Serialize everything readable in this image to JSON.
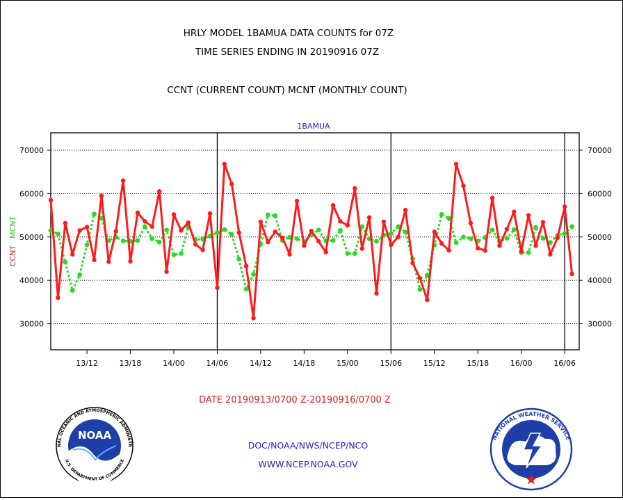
{
  "header": {
    "title_line1": "HRLY MODEL 1BAMUA DATA COUNTS for 07Z",
    "title_line2": "TIME SERIES ENDING IN 20190916 07Z",
    "subtitle": "CCNT (CURRENT COUNT) MCNT (MONTHLY COUNT)"
  },
  "footer": {
    "date_range": "DATE 20190913/0700 Z-20190916/0700 Z",
    "org": "DOC/NOAA/NWS/NCEP/NCO",
    "url": "WWW.NCEP.NOAA.GOV"
  },
  "logos": {
    "noaa_text": "NOAA",
    "noaa_ring": "NATIONAL OCEANIC AND ATMOSPHERIC ADMINISTRATION",
    "noaa_ring_bottom": "U.S. DEPARTMENT OF COMMERCE",
    "nws_ring": "NATIONAL WEATHER SERVICE"
  },
  "colors": {
    "ccnt": "#ff1a1a",
    "mcnt": "#22dd22",
    "title": "#000000",
    "footer_date": "#e02020",
    "footer_links": "#2222cc",
    "panel_label": "#2222cc"
  },
  "chart_data": {
    "type": "line",
    "panel_label": "1BAMUA",
    "xlabel": "DATE 20190913/0700 Z-20190916/0700 Z",
    "ylabel_left": "CCNT",
    "ylabel_left2": "MCNT",
    "ylim": [
      24000,
      74000
    ],
    "xlim": [
      0,
      73
    ],
    "yticks": [
      30000,
      40000,
      50000,
      60000,
      70000
    ],
    "ytick_labels": [
      "30000",
      "40000",
      "50000",
      "60000",
      "70000"
    ],
    "xticks": [
      5,
      11,
      17,
      23,
      29,
      35,
      41,
      47,
      53,
      59,
      65,
      71
    ],
    "xtick_labels": [
      "13/12",
      "13/18",
      "14/00",
      "14/06",
      "14/12",
      "14/18",
      "15/00",
      "15/06",
      "15/12",
      "15/18",
      "16/00",
      "16/06"
    ],
    "vlines": [
      23,
      47,
      71
    ],
    "grid": true,
    "x": [
      0,
      1,
      2,
      3,
      4,
      5,
      6,
      7,
      8,
      9,
      10,
      11,
      12,
      13,
      14,
      15,
      16,
      17,
      18,
      19,
      20,
      21,
      22,
      23,
      24,
      25,
      26,
      27,
      28,
      29,
      30,
      31,
      32,
      33,
      34,
      35,
      36,
      37,
      38,
      39,
      40,
      41,
      42,
      43,
      44,
      45,
      46,
      47,
      48,
      49,
      50,
      51,
      52,
      53,
      54,
      55,
      56,
      57,
      58,
      59,
      60,
      61,
      62,
      63,
      64,
      65,
      66,
      67,
      68,
      69,
      70,
      71,
      72
    ],
    "series": [
      {
        "name": "CCNT",
        "values": [
          58500,
          36000,
          53200,
          46000,
          51500,
          52300,
          44700,
          59500,
          44300,
          51300,
          63000,
          44400,
          55600,
          53600,
          52400,
          60500,
          42000,
          55200,
          51500,
          53300,
          48300,
          47000,
          55400,
          38300,
          66800,
          62200,
          51000,
          43300,
          31300,
          53500,
          48800,
          51200,
          49800,
          46000,
          58300,
          48000,
          51400,
          49000,
          46500,
          57300,
          53600,
          52700,
          61200,
          47300,
          54500,
          37000,
          53500,
          48200,
          50000,
          56200,
          44000,
          40500,
          35500,
          51200,
          48500,
          46900,
          66800,
          61800,
          53200,
          47400,
          46900,
          59000,
          48000,
          51800,
          55800,
          46700,
          55000,
          48000,
          53400,
          46000,
          49800,
          57000,
          41500
        ]
      },
      {
        "name": "MCNT",
        "values": [
          51500,
          50700,
          44200,
          37700,
          41300,
          48200,
          55300,
          54300,
          49200,
          50000,
          49100,
          49000,
          49200,
          52400,
          49600,
          48800,
          51600,
          45900,
          46200,
          52300,
          49400,
          49500,
          50200,
          51000,
          51700,
          50600,
          44900,
          38000,
          41400,
          48400,
          55100,
          54900,
          49200,
          49900,
          49600,
          48900,
          50500,
          51600,
          49100,
          49200,
          51500,
          46200,
          46200,
          52400,
          49600,
          49000,
          50400,
          50800,
          52400,
          51100,
          45000,
          37900,
          41200,
          48100,
          55200,
          54300,
          48700,
          50000,
          49600,
          49100,
          49900,
          51600,
          49000,
          49700,
          51700,
          46400,
          46400,
          52200,
          49700,
          48700,
          50400,
          50800,
          52400
        ]
      }
    ]
  }
}
